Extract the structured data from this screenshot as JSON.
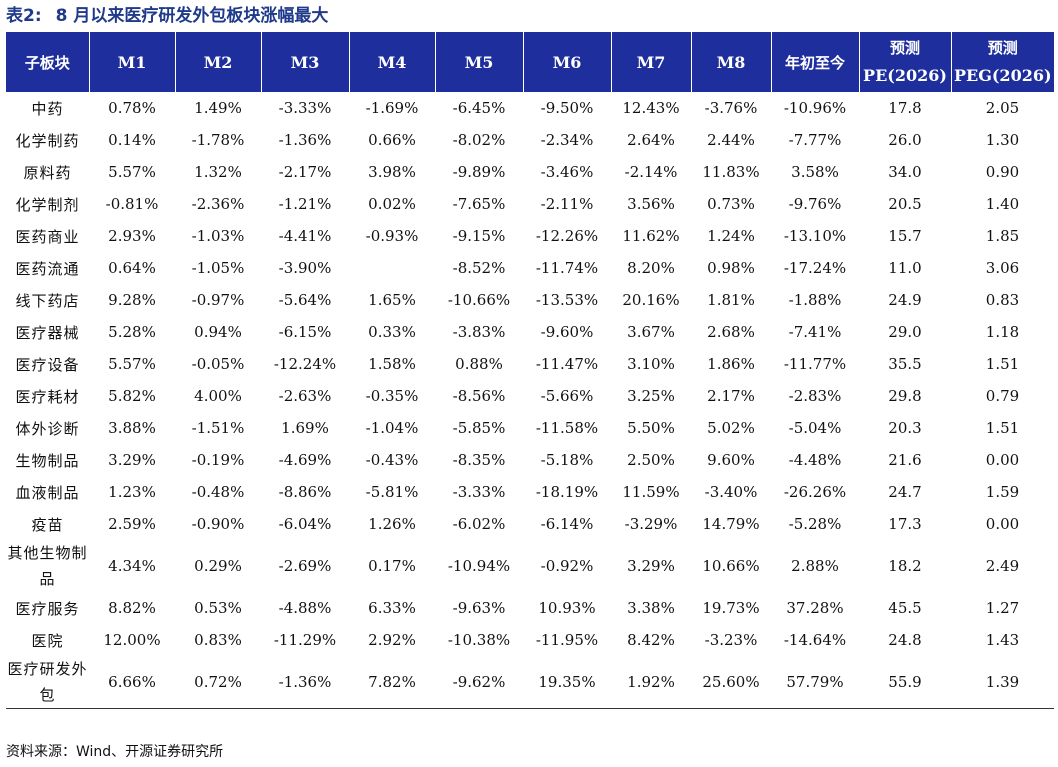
{
  "caption": {
    "number": "表2:",
    "title": "8 月以来医疗研发外包板块涨幅最大"
  },
  "columns": {
    "sector": "子板块",
    "m1": "M1",
    "m2": "M2",
    "m3": "M3",
    "m4": "M4",
    "m5": "M5",
    "m6": "M6",
    "m7": "M7",
    "m8": "M8",
    "ytd": "年初至今",
    "pe_top": "预测",
    "pe_bottom": "PE(2026)",
    "peg_top": "预测",
    "peg_bottom": "PEG(2026)"
  },
  "rows": [
    {
      "name": "中药",
      "m1": "0.78%",
      "m2": "1.49%",
      "m3": "-3.33%",
      "m4": "-1.69%",
      "m5": "-6.45%",
      "m6": "-9.50%",
      "m7": "12.43%",
      "m8": "-3.76%",
      "ytd": "-10.96%",
      "pe": "17.8",
      "peg": "2.05"
    },
    {
      "name": "化学制药",
      "m1": "0.14%",
      "m2": "-1.78%",
      "m3": "-1.36%",
      "m4": "0.66%",
      "m5": "-8.02%",
      "m6": "-2.34%",
      "m7": "2.64%",
      "m8": "2.44%",
      "ytd": "-7.77%",
      "pe": "26.0",
      "peg": "1.30"
    },
    {
      "name": "原料药",
      "m1": "5.57%",
      "m2": "1.32%",
      "m3": "-2.17%",
      "m4": "3.98%",
      "m5": "-9.89%",
      "m6": "-3.46%",
      "m7": "-2.14%",
      "m8": "11.83%",
      "ytd": "3.58%",
      "pe": "34.0",
      "peg": "0.90"
    },
    {
      "name": "化学制剂",
      "m1": "-0.81%",
      "m2": "-2.36%",
      "m3": "-1.21%",
      "m4": "0.02%",
      "m5": "-7.65%",
      "m6": "-2.11%",
      "m7": "3.56%",
      "m8": "0.73%",
      "ytd": "-9.76%",
      "pe": "20.5",
      "peg": "1.40"
    },
    {
      "name": "医药商业",
      "m1": "2.93%",
      "m2": "-1.03%",
      "m3": "-4.41%",
      "m4": "-0.93%",
      "m5": "-9.15%",
      "m6": "-12.26%",
      "m7": "11.62%",
      "m8": "1.24%",
      "ytd": "-13.10%",
      "pe": "15.7",
      "peg": "1.85"
    },
    {
      "name": "医药流通",
      "m1": "0.64%",
      "m2": "-1.05%",
      "m3": "-3.90%",
      "m4": "",
      "m5": "-8.52%",
      "m6": "-11.74%",
      "m7": "8.20%",
      "m8": "0.98%",
      "ytd": "-17.24%",
      "pe": "11.0",
      "peg": "3.06"
    },
    {
      "name": "线下药店",
      "m1": "9.28%",
      "m2": "-0.97%",
      "m3": "-5.64%",
      "m4": "1.65%",
      "m5": "-10.66%",
      "m6": "-13.53%",
      "m7": "20.16%",
      "m8": "1.81%",
      "ytd": "-1.88%",
      "pe": "24.9",
      "peg": "0.83"
    },
    {
      "name": "医疗器械",
      "m1": "5.28%",
      "m2": "0.94%",
      "m3": "-6.15%",
      "m4": "0.33%",
      "m5": "-3.83%",
      "m6": "-9.60%",
      "m7": "3.67%",
      "m8": "2.68%",
      "ytd": "-7.41%",
      "pe": "29.0",
      "peg": "1.18"
    },
    {
      "name": "医疗设备",
      "m1": "5.57%",
      "m2": "-0.05%",
      "m3": "-12.24%",
      "m4": "1.58%",
      "m5": "0.88%",
      "m6": "-11.47%",
      "m7": "3.10%",
      "m8": "1.86%",
      "ytd": "-11.77%",
      "pe": "35.5",
      "peg": "1.51"
    },
    {
      "name": "医疗耗材",
      "m1": "5.82%",
      "m2": "4.00%",
      "m3": "-2.63%",
      "m4": "-0.35%",
      "m5": "-8.56%",
      "m6": "-5.66%",
      "m7": "3.25%",
      "m8": "2.17%",
      "ytd": "-2.83%",
      "pe": "29.8",
      "peg": "0.79"
    },
    {
      "name": "体外诊断",
      "m1": "3.88%",
      "m2": "-1.51%",
      "m3": "1.69%",
      "m4": "-1.04%",
      "m5": "-5.85%",
      "m6": "-11.58%",
      "m7": "5.50%",
      "m8": "5.02%",
      "ytd": "-5.04%",
      "pe": "20.3",
      "peg": "1.51"
    },
    {
      "name": "生物制品",
      "m1": "3.29%",
      "m2": "-0.19%",
      "m3": "-4.69%",
      "m4": "-0.43%",
      "m5": "-8.35%",
      "m6": "-5.18%",
      "m7": "2.50%",
      "m8": "9.60%",
      "ytd": "-4.48%",
      "pe": "21.6",
      "peg": "0.00"
    },
    {
      "name": "血液制品",
      "m1": "1.23%",
      "m2": "-0.48%",
      "m3": "-8.86%",
      "m4": "-5.81%",
      "m5": "-3.33%",
      "m6": "-18.19%",
      "m7": "11.59%",
      "m8": "-3.40%",
      "ytd": "-26.26%",
      "pe": "24.7",
      "peg": "1.59"
    },
    {
      "name": "疫苗",
      "m1": "2.59%",
      "m2": "-0.90%",
      "m3": "-6.04%",
      "m4": "1.26%",
      "m5": "-6.02%",
      "m6": "-6.14%",
      "m7": "-3.29%",
      "m8": "14.79%",
      "ytd": "-5.28%",
      "pe": "17.3",
      "peg": "0.00"
    },
    {
      "name": "其他生物制品",
      "tall": true,
      "m1": "4.34%",
      "m2": "0.29%",
      "m3": "-2.69%",
      "m4": "0.17%",
      "m5": "-10.94%",
      "m6": "-0.92%",
      "m7": "3.29%",
      "m8": "10.66%",
      "ytd": "2.88%",
      "pe": "18.2",
      "peg": "2.49"
    },
    {
      "name": "医疗服务",
      "m1": "8.82%",
      "m2": "0.53%",
      "m3": "-4.88%",
      "m4": "6.33%",
      "m5": "-9.63%",
      "m6": "10.93%",
      "m7": "3.38%",
      "m8": "19.73%",
      "ytd": "37.28%",
      "pe": "45.5",
      "peg": "1.27"
    },
    {
      "name": "医院",
      "m1": "12.00%",
      "m2": "0.83%",
      "m3": "-11.29%",
      "m4": "2.92%",
      "m5": "-10.38%",
      "m6": "-11.95%",
      "m7": "8.42%",
      "m8": "-3.23%",
      "ytd": "-14.64%",
      "pe": "24.8",
      "peg": "1.43"
    },
    {
      "name": "医疗研发外包",
      "tall": true,
      "m1": "6.66%",
      "m2": "0.72%",
      "m3": "-1.36%",
      "m4": "7.82%",
      "m5": "-9.62%",
      "m6": "19.35%",
      "m7": "1.92%",
      "m8": "25.60%",
      "ytd": "57.79%",
      "pe": "55.9",
      "peg": "1.39"
    }
  ],
  "source": "资料来源：Wind、开源证券研究所"
}
